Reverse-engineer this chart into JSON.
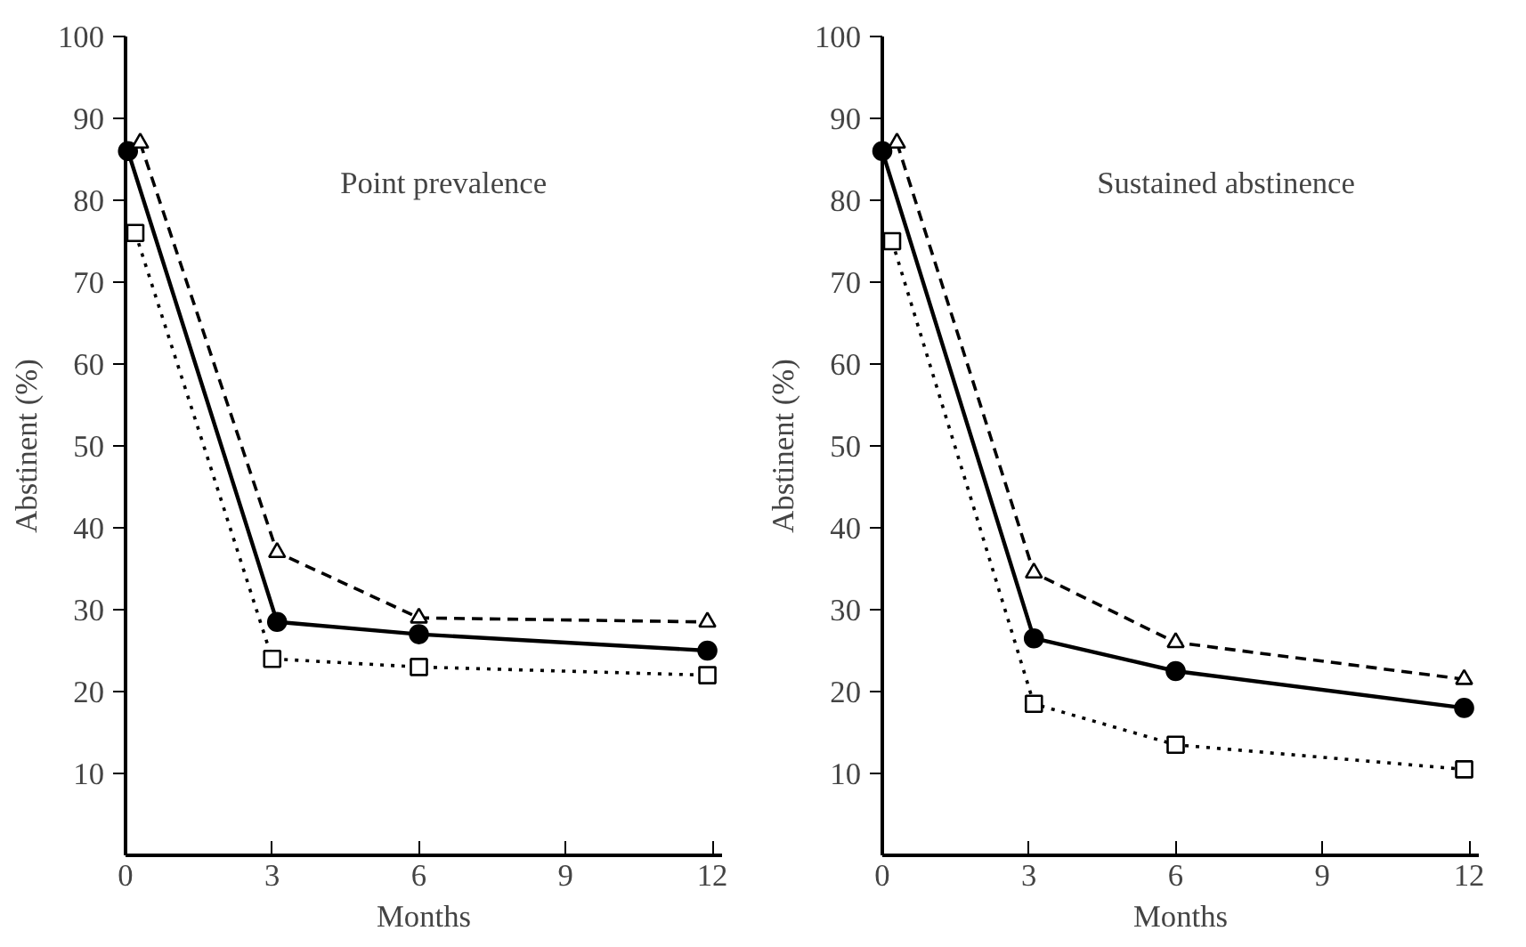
{
  "chart_data": [
    {
      "type": "line",
      "xlabel": "Months",
      "ylabel": "Abstinent (%)",
      "annotations": [
        "Point prevalence"
      ],
      "xlim": [
        0,
        12.2
      ],
      "ylim": [
        0,
        100
      ],
      "xticks": [
        0,
        3,
        6,
        9,
        12
      ],
      "yticks": [
        10,
        20,
        30,
        40,
        50,
        60,
        70,
        80,
        90,
        100
      ],
      "grid": false,
      "series": [
        {
          "color": "#000000",
          "marker": "triangle",
          "line_style": "dashed",
          "x": [
            0.3,
            3.1,
            6,
            11.9
          ],
          "values": [
            87,
            37,
            29,
            28.5
          ]
        },
        {
          "color": "#000000",
          "marker": "circle",
          "line_style": "solid",
          "x": [
            0.05,
            3.1,
            6,
            11.9
          ],
          "values": [
            86,
            28.5,
            27,
            25
          ]
        },
        {
          "color": "#000000",
          "marker": "square",
          "line_style": "dotted",
          "x": [
            0.2,
            3,
            6,
            11.9
          ],
          "values": [
            76,
            24,
            23,
            22
          ]
        }
      ]
    },
    {
      "type": "line",
      "xlabel": "Months",
      "ylabel": "Abstinent (%)",
      "annotations": [
        "Sustained abstinence"
      ],
      "xlim": [
        0,
        12.2
      ],
      "ylim": [
        0,
        100
      ],
      "xticks": [
        0,
        3,
        6,
        9,
        12
      ],
      "yticks": [
        10,
        20,
        30,
        40,
        50,
        60,
        70,
        80,
        90,
        100
      ],
      "grid": false,
      "series": [
        {
          "color": "#000000",
          "marker": "triangle",
          "line_style": "dashed",
          "x": [
            0.3,
            3.1,
            6,
            11.9
          ],
          "values": [
            87,
            34.5,
            26,
            21.5
          ]
        },
        {
          "color": "#000000",
          "marker": "circle",
          "line_style": "solid",
          "x": [
            0.0,
            3.1,
            6,
            11.9
          ],
          "values": [
            86,
            26.5,
            22.5,
            18
          ]
        },
        {
          "color": "#000000",
          "marker": "square",
          "line_style": "dotted",
          "x": [
            0.2,
            3.1,
            6,
            11.9
          ],
          "values": [
            75,
            18.5,
            13.5,
            10.5
          ]
        }
      ]
    }
  ]
}
